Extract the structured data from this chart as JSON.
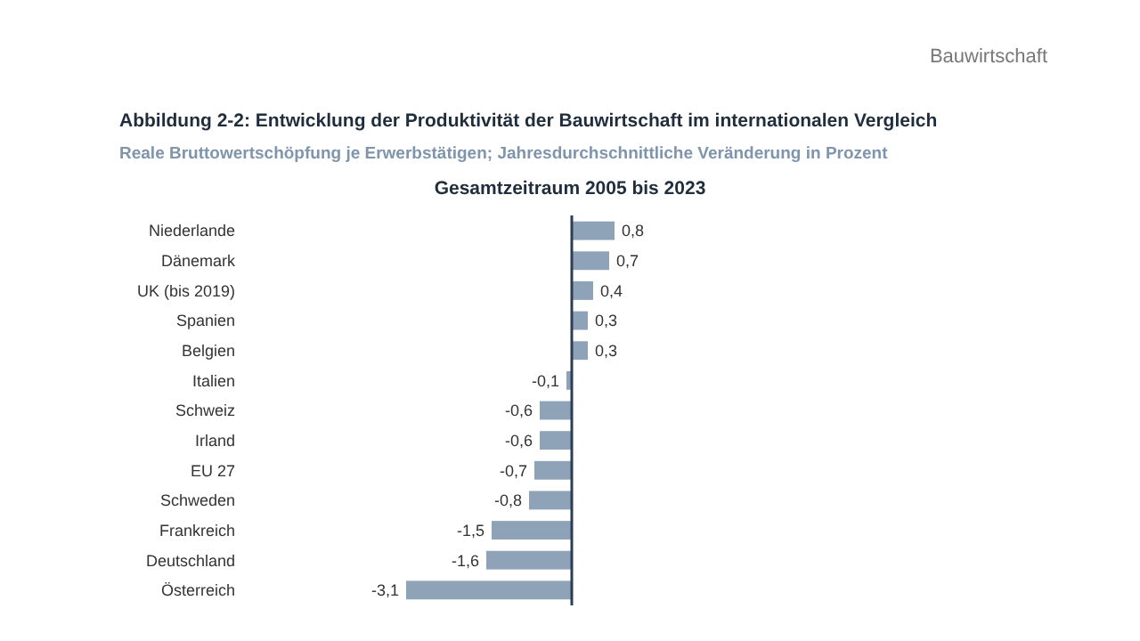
{
  "chart_data": {
    "type": "bar",
    "orientation": "horizontal",
    "title": "Abbildung 2-2: Entwicklung der Produktivität der Bauwirtschaft im internationalen Vergleich",
    "subtitle": "Reale Bruttowertschöpfung je Erwerbstätigen; Jahresdurchschnittliche Veränderung in Prozent",
    "annotations": [
      "Bauwirtschaft",
      "Gesamtzeitraum 2005 bis 2023"
    ],
    "categories": [
      "Niederlande",
      "Dänemark",
      "UK (bis 2019)",
      "Spanien",
      "Belgien",
      "Italien",
      "Schweiz",
      "Irland",
      "EU 27",
      "Schweden",
      "Frankreich",
      "Deutschland",
      "Österreich"
    ],
    "values": [
      0.8,
      0.7,
      0.4,
      0.3,
      0.3,
      -0.1,
      -0.6,
      -0.6,
      -0.7,
      -0.8,
      -1.5,
      -1.6,
      -3.1
    ],
    "value_labels": [
      "0,8",
      "0,7",
      "0,4",
      "0,3",
      "0,3",
      "-0,1",
      "-0,6",
      "-0,6",
      "-0,7",
      "-0,8",
      "-1,5",
      "-1,6",
      "-3,1"
    ],
    "color": "#8fa3b8"
  }
}
